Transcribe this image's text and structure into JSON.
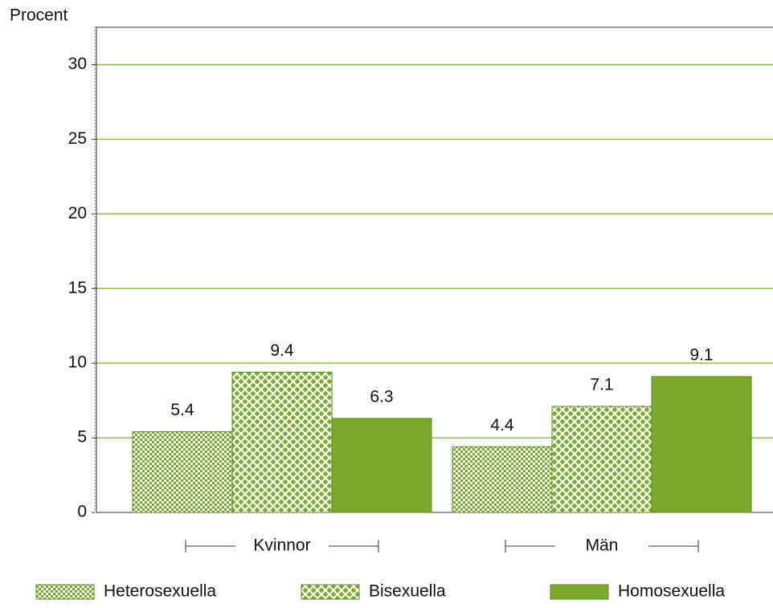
{
  "chart_data": {
    "type": "bar",
    "y_label": "Procent",
    "categories": [
      "Kvinnor",
      "Män"
    ],
    "series": [
      {
        "name": "Heterosexuella",
        "color": "#7aaa2a",
        "pattern": "checker",
        "values": [
          5.4,
          4.4
        ]
      },
      {
        "name": "Bisexuella",
        "color": "#7aaa2a",
        "pattern": "crosshatch",
        "values": [
          9.4,
          7.1
        ]
      },
      {
        "name": "Homosexuella",
        "color": "#7aaa2a",
        "pattern": "solid",
        "values": [
          6.3,
          9.1
        ]
      }
    ],
    "ylim": [
      0,
      32.5
    ],
    "yticks": [
      0,
      5,
      10,
      15,
      20,
      25,
      30
    ],
    "grid": true,
    "grid_color": "#8cbf3a"
  }
}
